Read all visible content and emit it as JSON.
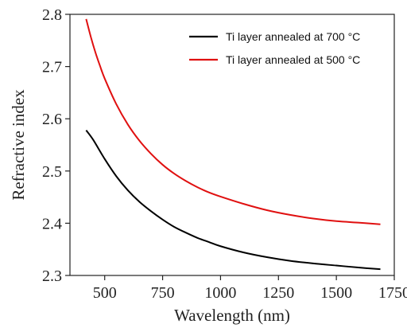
{
  "chart_data": {
    "type": "line",
    "xlabel": "Wavelength (nm)",
    "ylabel": "Refractive index",
    "xlim": [
      350,
      1750
    ],
    "ylim": [
      2.3,
      2.8
    ],
    "x_ticks": [
      500,
      750,
      1000,
      1250,
      1500,
      1750
    ],
    "y_ticks": [
      2.3,
      2.4,
      2.5,
      2.6,
      2.7,
      2.8
    ],
    "legend_position": "top-right",
    "grid": false,
    "series": [
      {
        "name": "Ti layer annealed at 700 °C",
        "color": "#000000",
        "x": [
          420,
          450,
          500,
          550,
          600,
          650,
          700,
          750,
          800,
          850,
          900,
          950,
          1000,
          1100,
          1200,
          1300,
          1400,
          1500,
          1600,
          1690
        ],
        "y": [
          2.578,
          2.56,
          2.523,
          2.49,
          2.463,
          2.441,
          2.423,
          2.407,
          2.393,
          2.382,
          2.372,
          2.364,
          2.356,
          2.344,
          2.335,
          2.328,
          2.323,
          2.319,
          2.315,
          2.312
        ]
      },
      {
        "name": "Ti layer annealed at 500 °C",
        "color": "#e01010",
        "x": [
          420,
          440,
          460,
          480,
          500,
          550,
          600,
          650,
          700,
          750,
          800,
          850,
          900,
          950,
          1000,
          1100,
          1200,
          1300,
          1400,
          1500,
          1600,
          1690
        ],
        "y": [
          2.791,
          2.757,
          2.727,
          2.701,
          2.677,
          2.628,
          2.589,
          2.558,
          2.533,
          2.512,
          2.495,
          2.481,
          2.469,
          2.459,
          2.451,
          2.437,
          2.425,
          2.416,
          2.409,
          2.404,
          2.401,
          2.398
        ]
      }
    ]
  }
}
